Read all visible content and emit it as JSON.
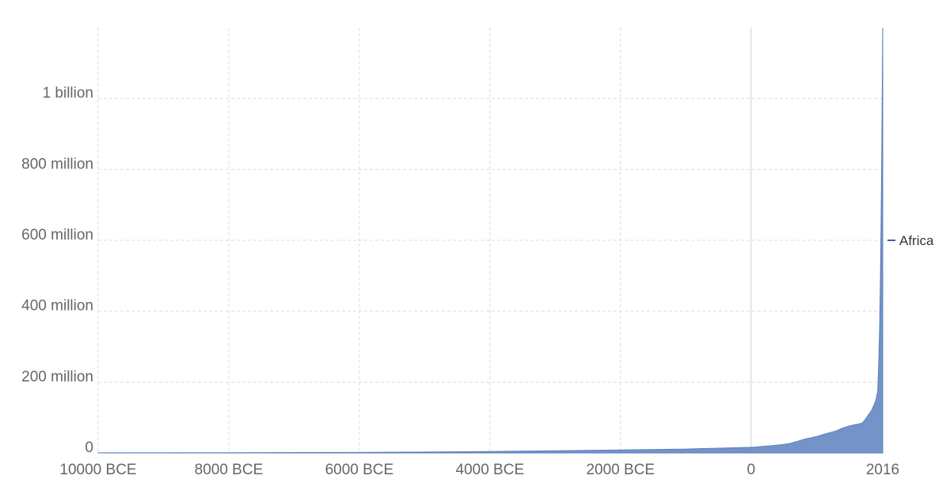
{
  "chart_data": {
    "type": "area",
    "title": "",
    "xlabel": "",
    "ylabel": "",
    "xlim": [
      -10000,
      2016
    ],
    "ylim": [
      0,
      1200000000
    ],
    "grid": true,
    "legend_position": "right",
    "x_ticks": [
      {
        "value": -10000,
        "label": "10000 BCE"
      },
      {
        "value": -8000,
        "label": "8000 BCE"
      },
      {
        "value": -6000,
        "label": "6000 BCE"
      },
      {
        "value": -4000,
        "label": "4000 BCE"
      },
      {
        "value": -2000,
        "label": "2000 BCE"
      },
      {
        "value": 0,
        "label": "0"
      },
      {
        "value": 2016,
        "label": "2016"
      }
    ],
    "y_ticks": [
      {
        "value": 0,
        "label": "0"
      },
      {
        "value": 200000000,
        "label": "200 million"
      },
      {
        "value": 400000000,
        "label": "400 million"
      },
      {
        "value": 600000000,
        "label": "600 million"
      },
      {
        "value": 800000000,
        "label": "800 million"
      },
      {
        "value": 1000000000,
        "label": "1 billion"
      }
    ],
    "series": [
      {
        "name": "Africa",
        "color": "#6d8ec6",
        "x": [
          -10000,
          -8000,
          -6000,
          -5000,
          -4000,
          -3000,
          -2000,
          -1000,
          -500,
          0,
          100,
          200,
          300,
          400,
          500,
          600,
          700,
          800,
          900,
          1000,
          1100,
          1200,
          1300,
          1400,
          1500,
          1600,
          1700,
          1750,
          1800,
          1850,
          1870,
          1900,
          1920,
          1940,
          1950,
          1960,
          1970,
          1980,
          1990,
          2000,
          2005,
          2010,
          2016
        ],
        "values": [
          250000,
          700000,
          1500000,
          2500000,
          4000000,
          6000000,
          8500000,
          11000000,
          13500000,
          16000000,
          17000000,
          19000000,
          20000000,
          22000000,
          24000000,
          27000000,
          32000000,
          38000000,
          42000000,
          46000000,
          52000000,
          57000000,
          62000000,
          70000000,
          76000000,
          80000000,
          84000000,
          95000000,
          108000000,
          121000000,
          130000000,
          143000000,
          155000000,
          175000000,
          228000000,
          285000000,
          366000000,
          478000000,
          630000000,
          810000000,
          920000000,
          1050000000,
          1200000000
        ]
      }
    ]
  }
}
